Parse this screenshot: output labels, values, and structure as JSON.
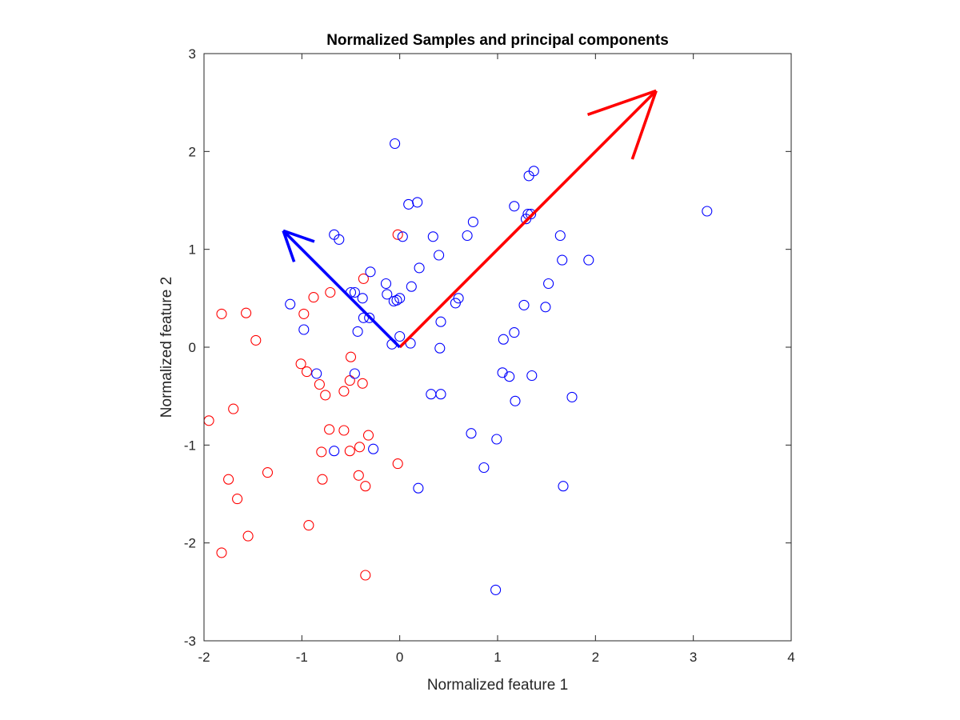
{
  "chart_data": {
    "type": "scatter",
    "title": "Normalized Samples and principal components",
    "xlabel": "Normalized feature 1",
    "ylabel": "Normalized feature 2",
    "xlim": [
      -2,
      4
    ],
    "ylim": [
      -3,
      3
    ],
    "xticks": [
      -2,
      -1,
      0,
      1,
      2,
      3,
      4
    ],
    "yticks": [
      -3,
      -2,
      -1,
      0,
      1,
      2,
      3
    ],
    "grid": false,
    "legend": "none",
    "series": [
      {
        "color": "#ff0000",
        "marker": "open-circle",
        "points": [
          [
            -1.82,
            0.34
          ],
          [
            -1.57,
            0.35
          ],
          [
            -1.47,
            0.07
          ],
          [
            -1.95,
            -0.75
          ],
          [
            -1.7,
            -0.63
          ],
          [
            -1.75,
            -1.35
          ],
          [
            -1.66,
            -1.55
          ],
          [
            -1.55,
            -1.93
          ],
          [
            -1.82,
            -2.1
          ],
          [
            -1.35,
            -1.28
          ],
          [
            -0.98,
            0.34
          ],
          [
            -0.88,
            0.51
          ],
          [
            -1.01,
            -0.17
          ],
          [
            -0.95,
            -0.25
          ],
          [
            -0.82,
            -0.38
          ],
          [
            -0.76,
            -0.49
          ],
          [
            -0.71,
            0.56
          ],
          [
            -0.72,
            -0.84
          ],
          [
            -0.57,
            -0.85
          ],
          [
            -0.8,
            -1.07
          ],
          [
            -0.79,
            -1.35
          ],
          [
            -0.93,
            -1.82
          ],
          [
            -0.57,
            -0.45
          ],
          [
            -0.5,
            -0.1
          ],
          [
            -0.51,
            -0.34
          ],
          [
            -0.38,
            -0.37
          ],
          [
            -0.51,
            -1.06
          ],
          [
            -0.41,
            -1.02
          ],
          [
            -0.32,
            -0.9
          ],
          [
            -0.42,
            -1.31
          ],
          [
            -0.35,
            -1.42
          ],
          [
            -0.37,
            0.7
          ],
          [
            -0.35,
            -2.33
          ],
          [
            -0.02,
            1.15
          ],
          [
            -0.02,
            -1.19
          ]
        ]
      },
      {
        "color": "#0000ff",
        "marker": "open-circle",
        "points": [
          [
            -1.12,
            0.44
          ],
          [
            -0.98,
            0.18
          ],
          [
            -0.85,
            -0.27
          ],
          [
            -0.67,
            1.15
          ],
          [
            -0.62,
            1.1
          ],
          [
            -0.5,
            0.56
          ],
          [
            -0.46,
            0.56
          ],
          [
            -0.38,
            0.5
          ],
          [
            -0.3,
            0.77
          ],
          [
            -0.37,
            0.3
          ],
          [
            -0.31,
            0.3
          ],
          [
            -0.43,
            0.16
          ],
          [
            -0.46,
            -0.27
          ],
          [
            -0.67,
            -1.06
          ],
          [
            -0.27,
            -1.04
          ],
          [
            -0.14,
            0.65
          ],
          [
            -0.13,
            0.54
          ],
          [
            -0.06,
            0.47
          ],
          [
            -0.03,
            0.48
          ],
          [
            0.0,
            0.5
          ],
          [
            -0.08,
            0.03
          ],
          [
            0.0,
            0.11
          ],
          [
            0.11,
            0.04
          ],
          [
            -0.05,
            2.08
          ],
          [
            0.09,
            1.46
          ],
          [
            0.18,
            1.48
          ],
          [
            0.03,
            1.13
          ],
          [
            0.2,
            0.81
          ],
          [
            0.12,
            0.62
          ],
          [
            0.34,
            1.13
          ],
          [
            0.4,
            0.94
          ],
          [
            0.42,
            0.26
          ],
          [
            0.41,
            -0.01
          ],
          [
            0.32,
            -0.48
          ],
          [
            0.42,
            -0.48
          ],
          [
            0.19,
            -1.44
          ],
          [
            0.57,
            0.45
          ],
          [
            0.6,
            0.5
          ],
          [
            0.69,
            1.14
          ],
          [
            0.75,
            1.28
          ],
          [
            0.73,
            -0.88
          ],
          [
            0.86,
            -1.23
          ],
          [
            0.99,
            -0.94
          ],
          [
            0.98,
            -2.48
          ],
          [
            1.06,
            0.08
          ],
          [
            1.17,
            0.15
          ],
          [
            1.05,
            -0.26
          ],
          [
            1.12,
            -0.3
          ],
          [
            1.18,
            -0.55
          ],
          [
            1.17,
            1.44
          ],
          [
            1.29,
            1.31
          ],
          [
            1.31,
            1.36
          ],
          [
            1.34,
            1.36
          ],
          [
            1.32,
            1.75
          ],
          [
            1.37,
            1.8
          ],
          [
            1.27,
            0.43
          ],
          [
            1.35,
            -0.29
          ],
          [
            1.52,
            0.65
          ],
          [
            1.49,
            0.41
          ],
          [
            1.64,
            1.14
          ],
          [
            1.66,
            0.89
          ],
          [
            1.67,
            -1.42
          ],
          [
            1.76,
            -0.51
          ],
          [
            1.93,
            0.89
          ],
          [
            3.14,
            1.39
          ]
        ]
      }
    ],
    "arrows": [
      {
        "color": "#ff0000",
        "from": [
          0,
          0
        ],
        "to": [
          2.62,
          2.62
        ]
      },
      {
        "color": "#0000ff",
        "from": [
          0,
          0
        ],
        "to": [
          -1.19,
          1.19
        ]
      }
    ]
  }
}
